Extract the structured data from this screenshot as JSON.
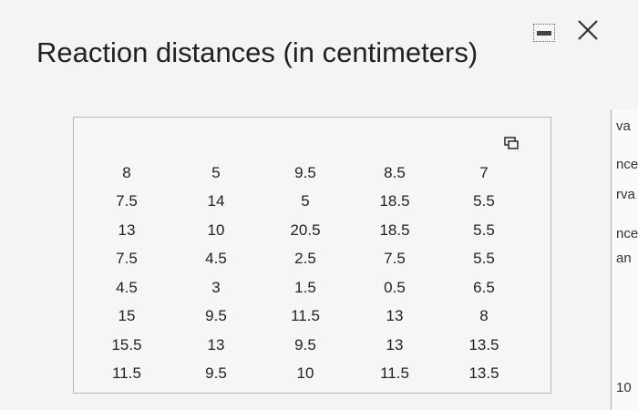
{
  "header": {
    "title": "Reaction distances (in centimeters)"
  },
  "table": {
    "rows": [
      [
        8,
        5,
        9.5,
        8.5,
        7
      ],
      [
        7.5,
        14,
        5,
        18.5,
        5.5
      ],
      [
        13,
        10,
        20.5,
        18.5,
        5.5
      ],
      [
        7.5,
        4.5,
        2.5,
        7.5,
        5.5
      ],
      [
        4.5,
        3,
        1.5,
        0.5,
        6.5
      ],
      [
        15,
        9.5,
        11.5,
        13,
        8
      ],
      [
        15.5,
        13,
        9.5,
        13,
        13.5
      ],
      [
        11.5,
        9.5,
        10,
        11.5,
        13.5
      ]
    ]
  },
  "background": {
    "fragments": [
      "va",
      "nce",
      "rva",
      "nce",
      "an",
      "10"
    ]
  }
}
